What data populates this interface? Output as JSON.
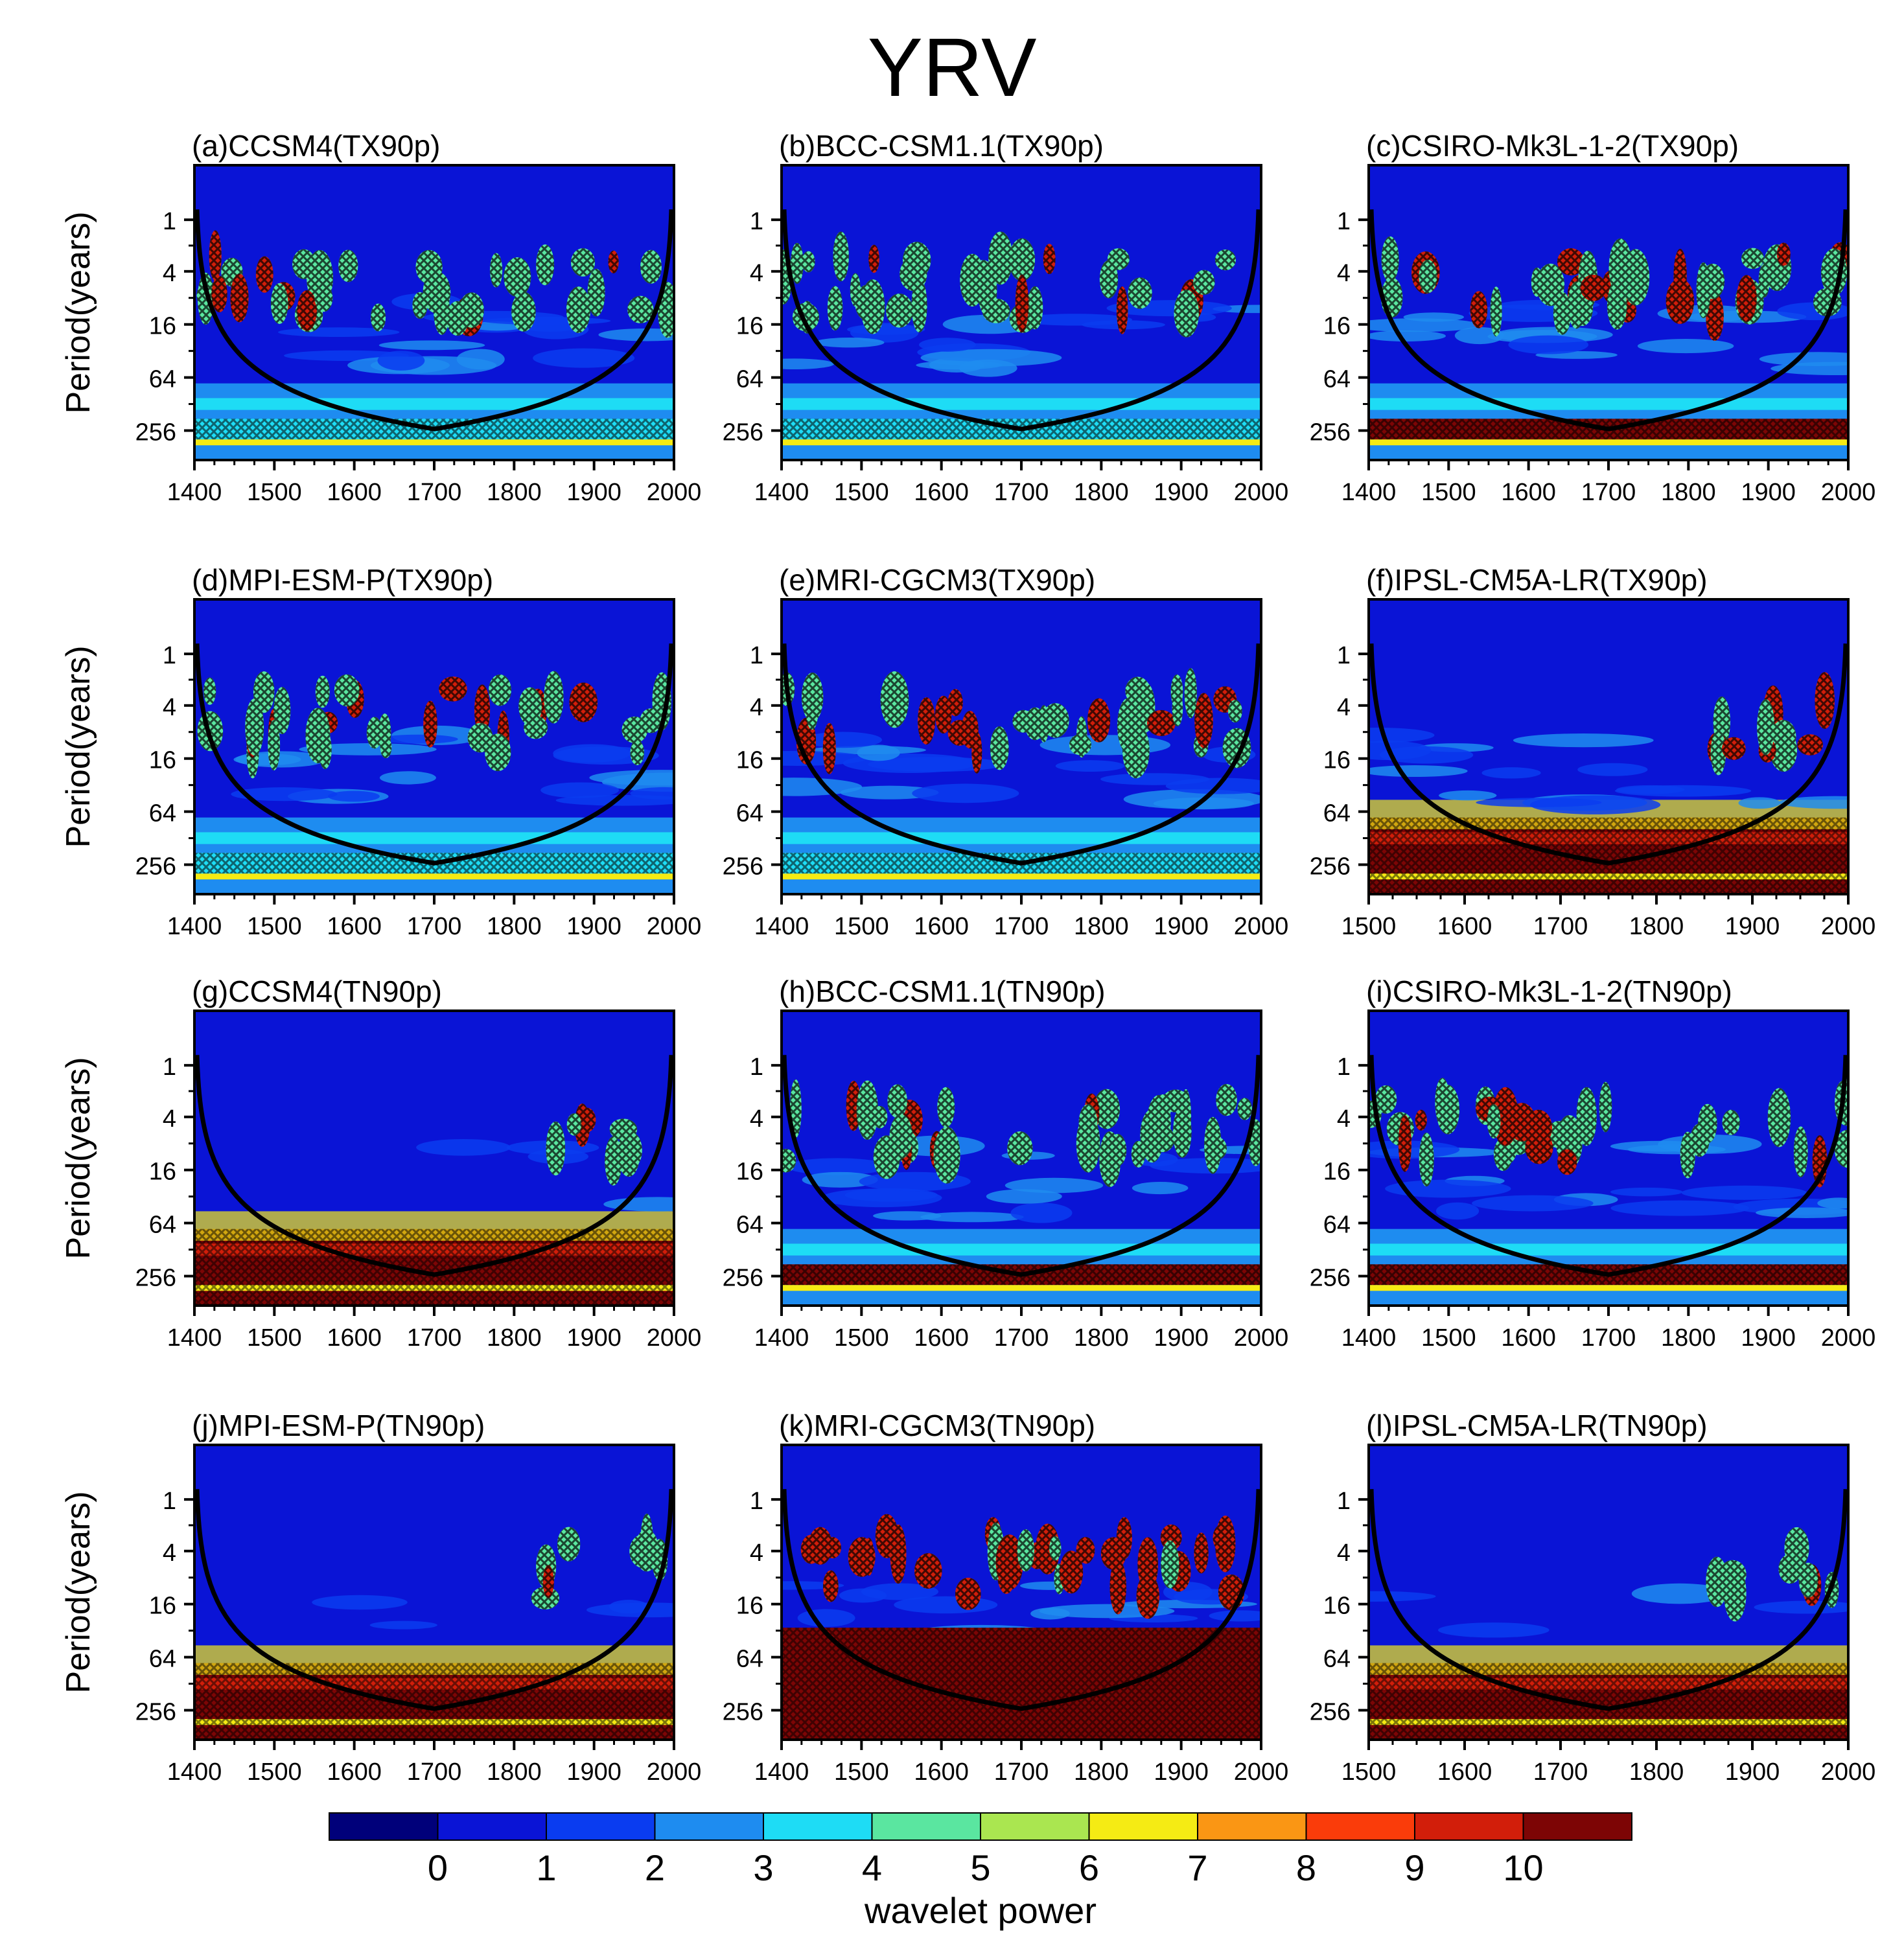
{
  "chart_data": {
    "type": "heatmap",
    "title": "YRV",
    "ylabel": "Period(years)",
    "y_ticks": [
      1,
      4,
      16,
      64,
      256
    ],
    "colorbar": {
      "label": "wavelet power",
      "tick_labels": [
        "0",
        "1",
        "2",
        "3",
        "4",
        "5",
        "6",
        "7",
        "8",
        "9",
        "10"
      ],
      "colors": [
        "#00007a",
        "#0a14d6",
        "#0a3cf0",
        "#1e8cf0",
        "#1edcf5",
        "#5ae6a0",
        "#aae650",
        "#f5eb14",
        "#fa9614",
        "#fa3c0a",
        "#d21e0a",
        "#7d0505"
      ]
    },
    "panels": [
      {
        "label": "(a)CCSM4(TX90p)",
        "x_ticks": [
          1400,
          1500,
          1600,
          1700,
          1800,
          1900,
          2000
        ],
        "coi_bottom": 1700
      },
      {
        "label": "(b)BCC-CSM1.1(TX90p)",
        "x_ticks": [
          1400,
          1500,
          1600,
          1700,
          1800,
          1900,
          2000
        ],
        "coi_bottom": 1700
      },
      {
        "label": "(c)CSIRO-Mk3L-1-2(TX90p)",
        "x_ticks": [
          1400,
          1500,
          1600,
          1700,
          1800,
          1900,
          2000
        ],
        "coi_bottom": 1700
      },
      {
        "label": "(d)MPI-ESM-P(TX90p)",
        "x_ticks": [
          1400,
          1500,
          1600,
          1700,
          1800,
          1900,
          2000
        ],
        "coi_bottom": 1700
      },
      {
        "label": "(e)MRI-CGCM3(TX90p)",
        "x_ticks": [
          1400,
          1500,
          1600,
          1700,
          1800,
          1900,
          2000
        ],
        "coi_bottom": 1700
      },
      {
        "label": "(f)IPSL-CM5A-LR(TX90p)",
        "x_ticks": [
          1500,
          1600,
          1700,
          1800,
          1900,
          2000
        ],
        "coi_bottom": 1750
      },
      {
        "label": "(g)CCSM4(TN90p)",
        "x_ticks": [
          1400,
          1500,
          1600,
          1700,
          1800,
          1900,
          2000
        ],
        "coi_bottom": 1700
      },
      {
        "label": "(h)BCC-CSM1.1(TN90p)",
        "x_ticks": [
          1400,
          1500,
          1600,
          1700,
          1800,
          1900,
          2000
        ],
        "coi_bottom": 1700
      },
      {
        "label": "(i)CSIRO-Mk3L-1-2(TN90p)",
        "x_ticks": [
          1400,
          1500,
          1600,
          1700,
          1800,
          1900,
          2000
        ],
        "coi_bottom": 1700
      },
      {
        "label": "(j)MPI-ESM-P(TN90p)",
        "x_ticks": [
          1400,
          1500,
          1600,
          1700,
          1800,
          1900,
          2000
        ],
        "coi_bottom": 1700
      },
      {
        "label": "(k)MRI-CGCM3(TN90p)",
        "x_ticks": [
          1400,
          1500,
          1600,
          1700,
          1800,
          1900,
          2000
        ],
        "coi_bottom": 1700
      },
      {
        "label": "(l)IPSL-CM5A-LR(TN90p)",
        "x_ticks": [
          1500,
          1600,
          1700,
          1800,
          1900,
          2000
        ],
        "coi_bottom": 1750
      }
    ]
  }
}
